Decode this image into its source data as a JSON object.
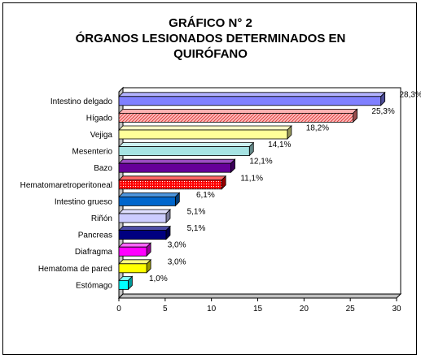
{
  "chart_data": {
    "type": "bar",
    "orientation": "horizontal",
    "style": "3d",
    "title_lines": [
      "GRÁFICO N°  2",
      "ÓRGANOS LESIONADOS DETERMINADOS EN",
      "QUIRÓFANO"
    ],
    "xlabel": "",
    "ylabel": "",
    "xlim": [
      0,
      30
    ],
    "xticks": [
      0,
      5,
      10,
      15,
      20,
      25,
      30
    ],
    "grid": false,
    "legend": "none",
    "bars": [
      {
        "label": "Intestino delgado",
        "value": 28.3,
        "value_label": "28,3%",
        "color": "#8080ff",
        "side": "#4d4d99",
        "top": "#b3b3ff",
        "pattern": "none"
      },
      {
        "label": "Hígado",
        "value": 25.3,
        "value_label": "25,3%",
        "color": "#ff8080",
        "side": "#994d4d",
        "top": "#ffb3b3",
        "pattern": "hatch"
      },
      {
        "label": "Vejiga",
        "value": 18.2,
        "value_label": "18,2%",
        "color": "#ffff99",
        "side": "#99995c",
        "top": "#ffffc8",
        "pattern": "none"
      },
      {
        "label": "Mesenterio",
        "value": 14.1,
        "value_label": "14,1%",
        "color": "#a6e3e3",
        "side": "#638888",
        "top": "#ccf1f1",
        "pattern": "none"
      },
      {
        "label": "Bazo",
        "value": 12.1,
        "value_label": "12,1%",
        "color": "#660099",
        "side": "#3d005c",
        "top": "#9c4dc2",
        "pattern": "none"
      },
      {
        "label": "Hematomaretroperitoneal",
        "value": 11.1,
        "value_label": "11,1%",
        "color": "#ff0000",
        "side": "#990000",
        "top": "#ff6666",
        "pattern": "dots"
      },
      {
        "label": "Intestino grueso",
        "value": 6.1,
        "value_label": "6,1%",
        "color": "#0066cc",
        "side": "#003d7a",
        "top": "#4d94db",
        "pattern": "none"
      },
      {
        "label": "Riñón",
        "value": 5.1,
        "value_label": "5,1%",
        "color": "#ccccff",
        "side": "#7a7a99",
        "top": "#e0e0ff",
        "pattern": "none"
      },
      {
        "label": "Pancreas",
        "value": 5.1,
        "value_label": "5,1%",
        "color": "#000080",
        "side": "#00004d",
        "top": "#4d4da6",
        "pattern": "none"
      },
      {
        "label": "Diafragma",
        "value": 3.0,
        "value_label": "3,0%",
        "color": "#ff00ff",
        "side": "#990099",
        "top": "#ff66ff",
        "pattern": "none"
      },
      {
        "label": "Hematoma de pared",
        "value": 3.0,
        "value_label": "3,0%",
        "color": "#ffff00",
        "side": "#999900",
        "top": "#ffff80",
        "pattern": "none"
      },
      {
        "label": "Estómago",
        "value": 1.0,
        "value_label": "1,0%",
        "color": "#00ffff",
        "side": "#009999",
        "top": "#80ffff",
        "pattern": "none"
      }
    ]
  }
}
